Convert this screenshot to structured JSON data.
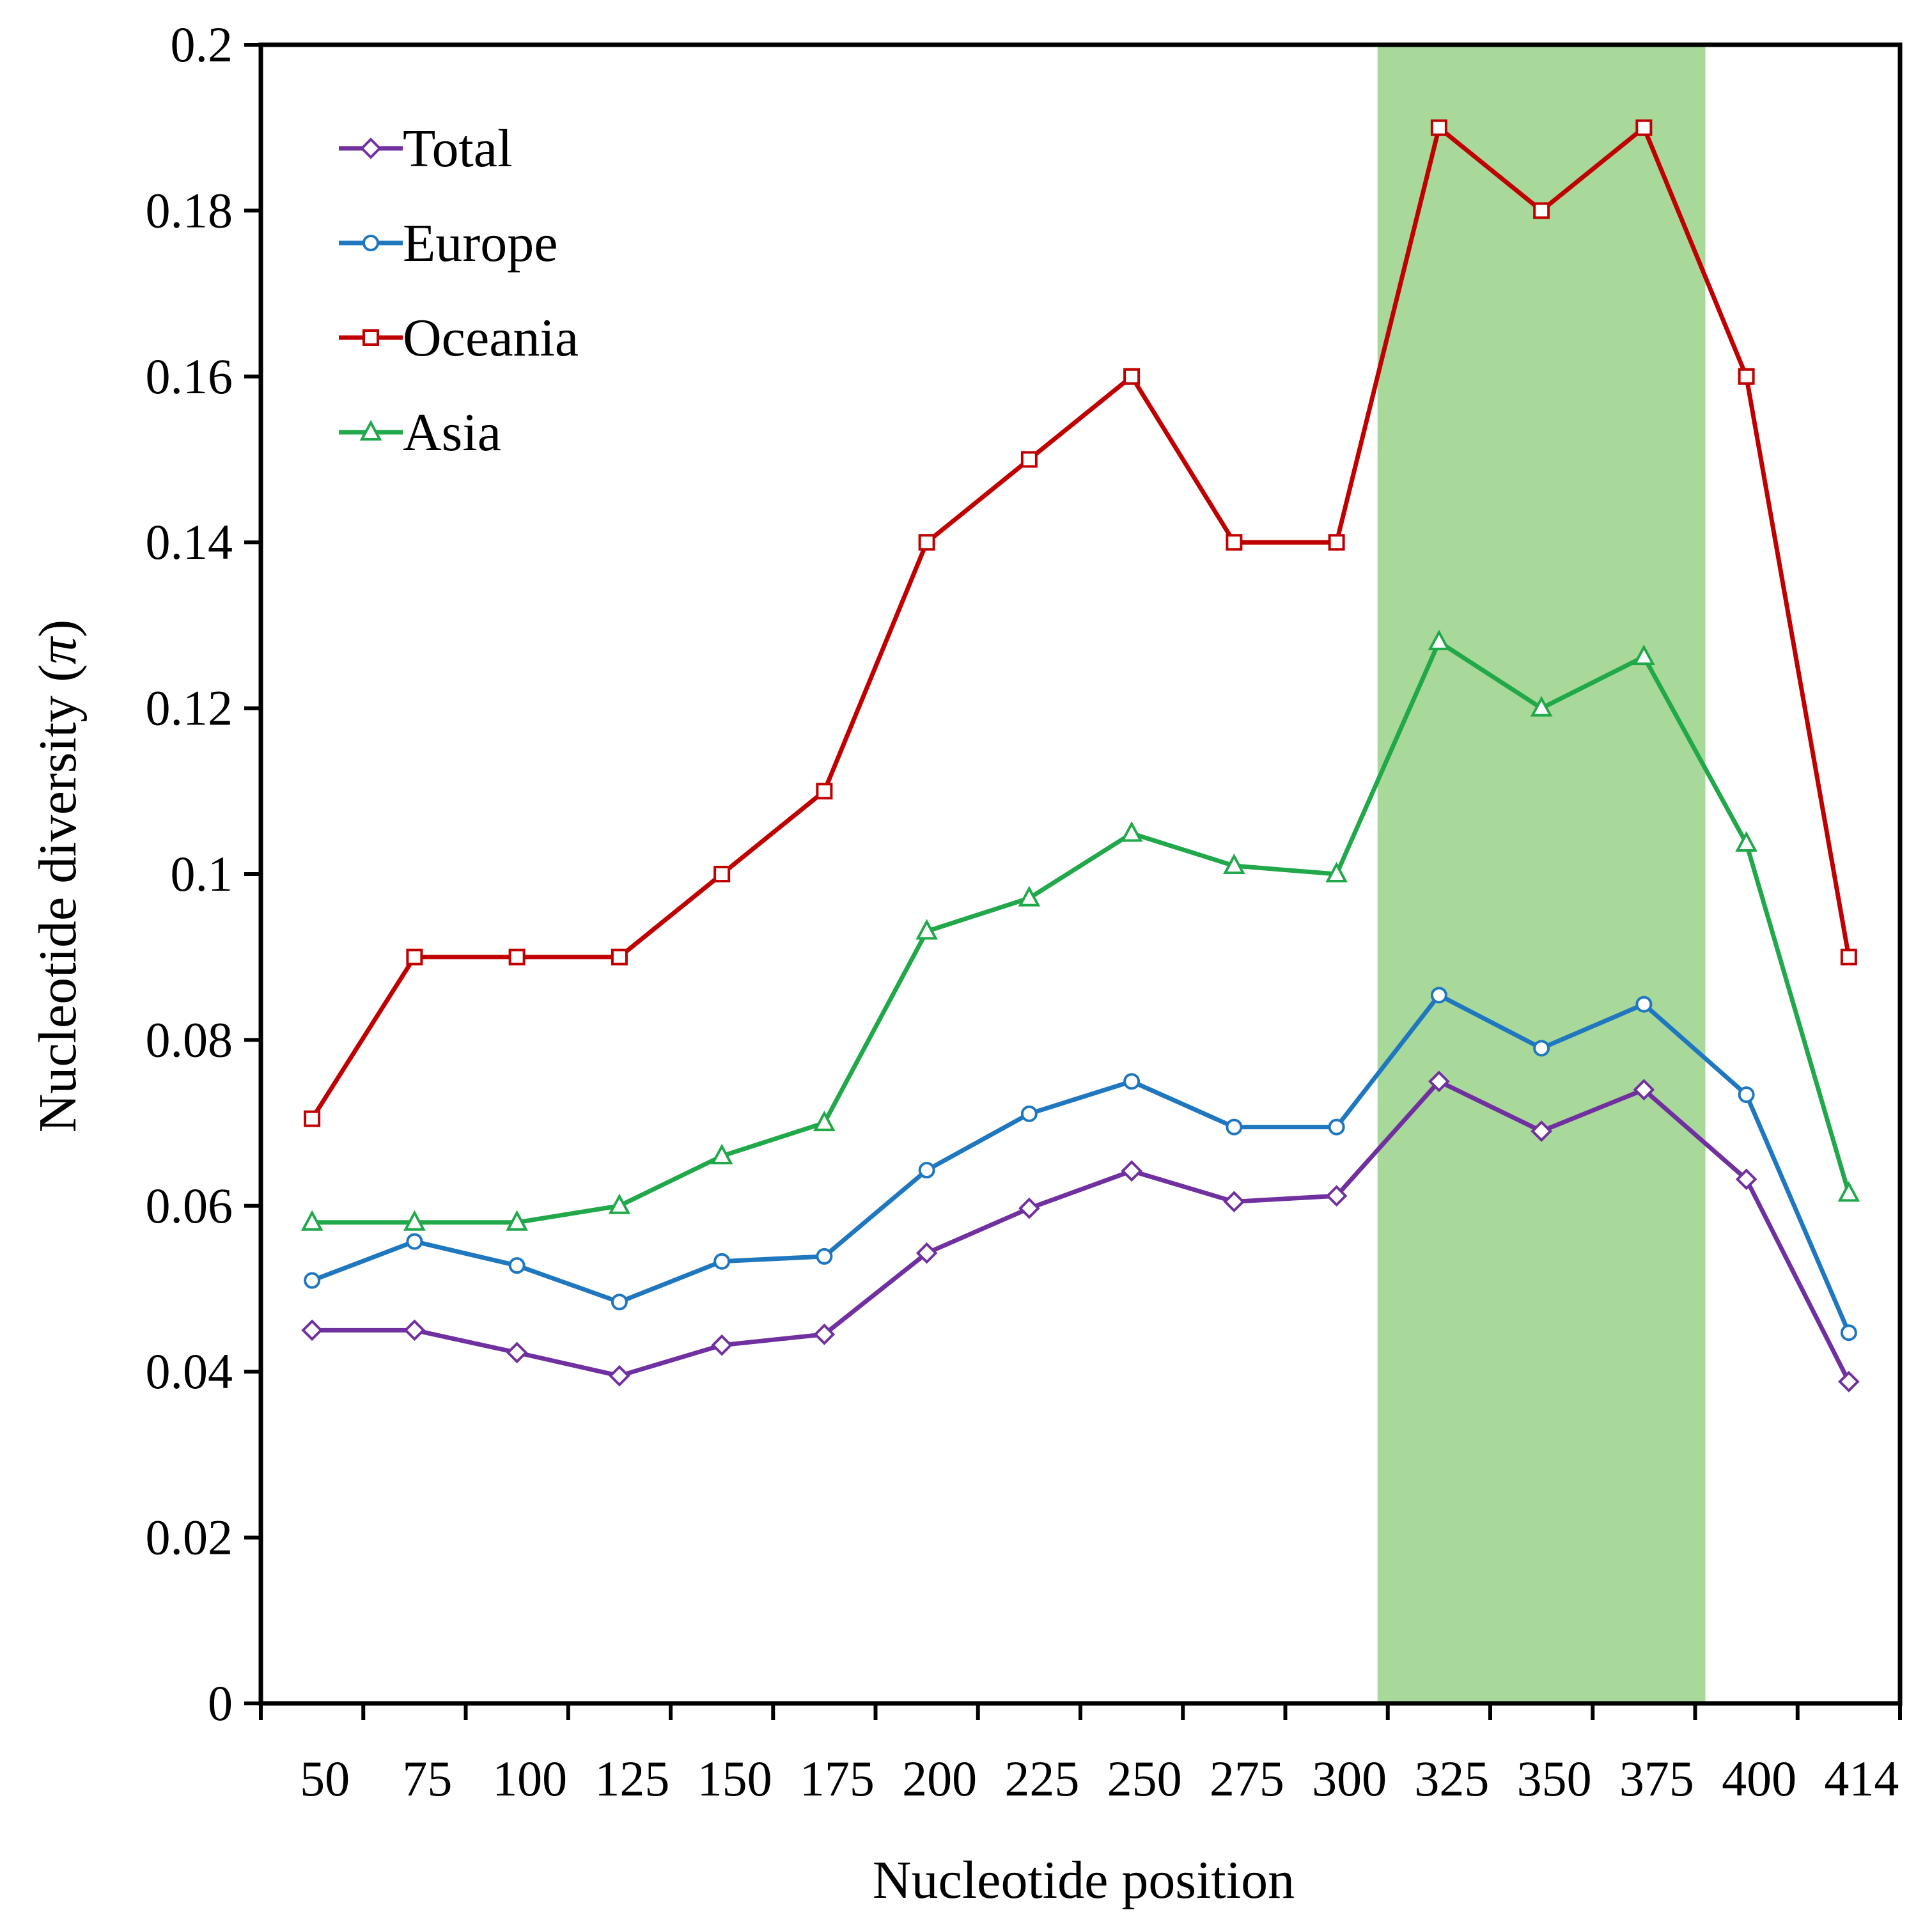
{
  "chart_data": {
    "type": "line",
    "title": "",
    "xlabel": "Nucleotide position",
    "ylabel_main": "Nucleotide diversity (",
    "ylabel_symbol": "π",
    "ylabel_close": ")",
    "categories": [
      "50",
      "75",
      "100",
      "125",
      "150",
      "175",
      "200",
      "225",
      "250",
      "275",
      "300",
      "325",
      "350",
      "375",
      "400",
      "414"
    ],
    "ylim": [
      0,
      0.2
    ],
    "yticks": [
      0,
      0.02,
      0.04,
      0.06,
      0.08,
      0.1,
      0.12,
      0.14,
      0.16,
      0.18,
      0.2
    ],
    "ytick_labels": [
      "0",
      "0.02",
      "0.04",
      "0.06",
      "0.08",
      "0.1",
      "0.12",
      "0.14",
      "0.16",
      "0.18",
      "0.2"
    ],
    "highlight": {
      "from_category": "325",
      "to_category": "375",
      "color": "#a8d89a"
    },
    "legend_position": "top-left",
    "series": [
      {
        "name": "Total",
        "color": "#7030a0",
        "marker": "diamond",
        "values": [
          0.045,
          0.045,
          0.0423,
          0.0395,
          0.0432,
          0.0445,
          0.0543,
          0.0597,
          0.0642,
          0.0605,
          0.0612,
          0.075,
          0.069,
          0.074,
          0.0632,
          0.0388
        ]
      },
      {
        "name": "Europe",
        "color": "#1f77c0",
        "marker": "circle",
        "values": [
          0.051,
          0.0557,
          0.0528,
          0.0484,
          0.0533,
          0.0539,
          0.0643,
          0.0711,
          0.075,
          0.0695,
          0.0695,
          0.0854,
          0.079,
          0.0843,
          0.0734,
          0.0447
        ]
      },
      {
        "name": "Oceania",
        "color": "#c00000",
        "marker": "square",
        "values": [
          0.0705,
          0.09,
          0.09,
          0.09,
          0.1,
          0.11,
          0.14,
          0.15,
          0.16,
          0.14,
          0.14,
          0.19,
          0.18,
          0.19,
          0.16,
          0.09
        ]
      },
      {
        "name": "Asia",
        "color": "#21a84a",
        "marker": "triangle",
        "values": [
          0.058,
          0.058,
          0.058,
          0.06,
          0.066,
          0.07,
          0.0931,
          0.0971,
          0.1049,
          0.101,
          0.1,
          0.128,
          0.12,
          0.1262,
          0.1037,
          0.0615
        ]
      }
    ]
  }
}
